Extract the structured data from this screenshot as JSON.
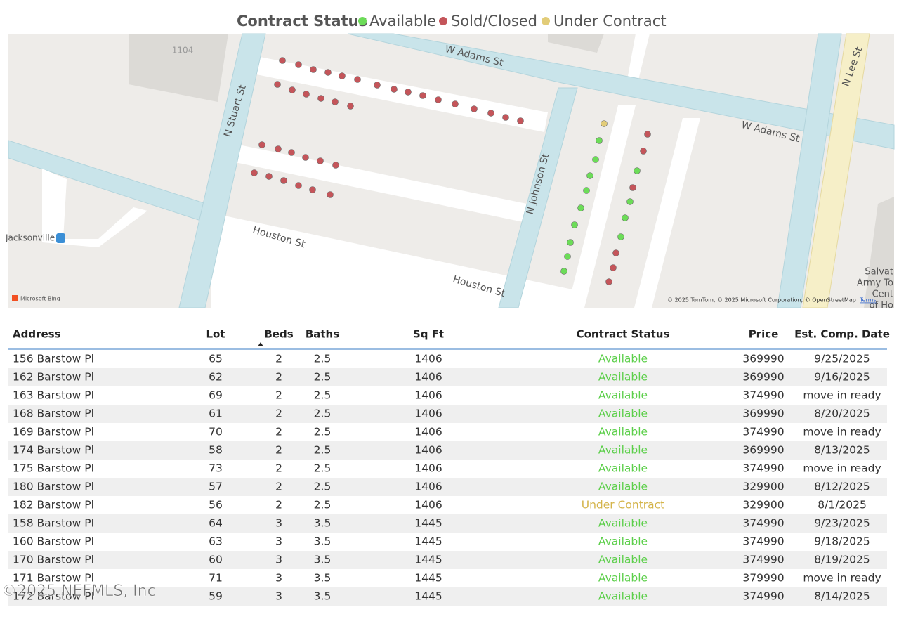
{
  "legend": {
    "title": "Contract Status",
    "items": [
      {
        "label": "Available",
        "color": "#6cdc58"
      },
      {
        "label": "Sold/Closed",
        "color": "#c4555a"
      },
      {
        "label": "Under Contract",
        "color": "#e2cc78"
      }
    ]
  },
  "map": {
    "labels": [
      "W Adams St",
      "W Adams St",
      "N Stuart St",
      "N Johnson St",
      "N Lee St",
      "Houston St",
      "Houston St",
      "1104",
      "Jacksonville",
      "Salvat",
      "Army To",
      "Cent",
      "of Ho"
    ],
    "logo": "Microsoft Bing",
    "attribution": "© 2025 TomTom, © 2025 Microsoft Corporation, © OpenStreetMap",
    "terms": "Terms"
  },
  "table": {
    "columns": [
      "Address",
      "Lot",
      "Beds",
      "Baths",
      "Sq Ft",
      "Contract Status",
      "Price",
      "Est. Comp. Date"
    ],
    "rows": [
      [
        "156 Barstow Pl",
        65,
        2,
        2.5,
        1406,
        "Available",
        369990,
        "9/25/2025"
      ],
      [
        "162 Barstow Pl",
        62,
        2,
        2.5,
        1406,
        "Available",
        369990,
        "9/16/2025"
      ],
      [
        "163 Barstow Pl",
        69,
        2,
        2.5,
        1406,
        "Available",
        374990,
        "move in ready"
      ],
      [
        "168 Barstow Pl",
        61,
        2,
        2.5,
        1406,
        "Available",
        369990,
        "8/20/2025"
      ],
      [
        "169 Barstow Pl",
        70,
        2,
        2.5,
        1406,
        "Available",
        374990,
        "move in ready"
      ],
      [
        "174 Barstow Pl",
        58,
        2,
        2.5,
        1406,
        "Available",
        369990,
        "8/13/2025"
      ],
      [
        "175 Barstow Pl",
        73,
        2,
        2.5,
        1406,
        "Available",
        374990,
        "move in ready"
      ],
      [
        "180 Barstow Pl",
        57,
        2,
        2.5,
        1406,
        "Available",
        329900,
        "8/12/2025"
      ],
      [
        "182 Barstow Pl",
        56,
        2,
        2.5,
        1406,
        "Under Contract",
        329900,
        "8/1/2025"
      ],
      [
        "158 Barstow Pl",
        64,
        3,
        3.5,
        1445,
        "Available",
        374990,
        "9/23/2025"
      ],
      [
        "160 Barstow Pl",
        63,
        3,
        3.5,
        1445,
        "Available",
        374990,
        "9/18/2025"
      ],
      [
        "170 Barstow Pl",
        60,
        3,
        3.5,
        1445,
        "Available",
        374990,
        "8/19/2025"
      ],
      [
        "171 Barstow Pl",
        71,
        3,
        3.5,
        1445,
        "Available",
        379990,
        "move in ready"
      ],
      [
        "172 Barstow Pl",
        59,
        3,
        3.5,
        1445,
        "Available",
        374990,
        "8/14/2025"
      ]
    ]
  },
  "watermark": "©2025 NEFMLS, Inc"
}
